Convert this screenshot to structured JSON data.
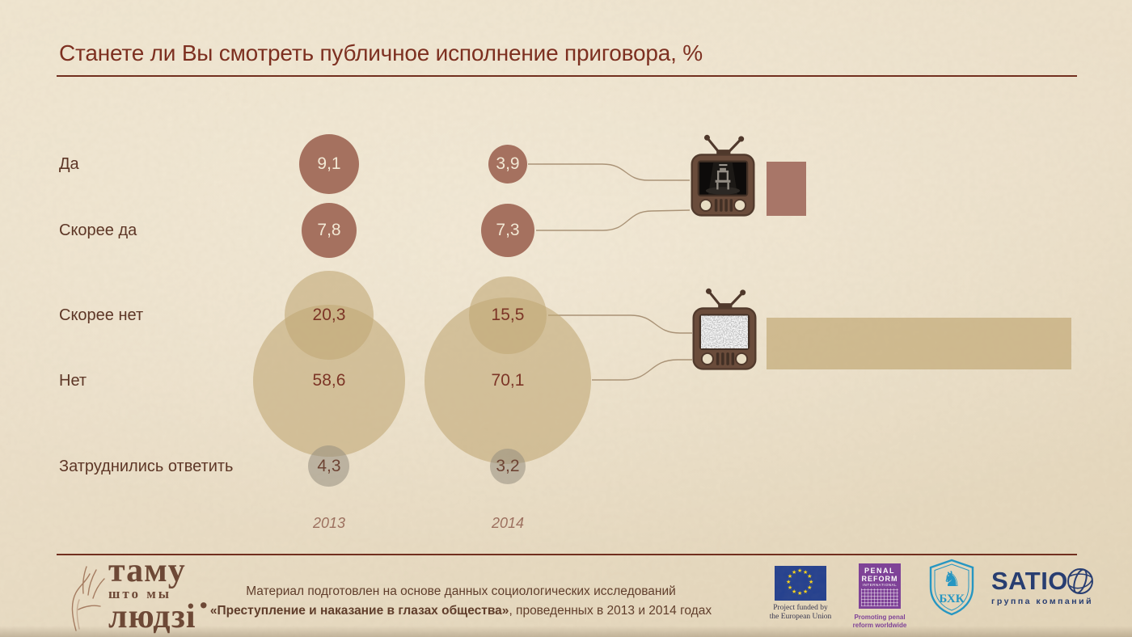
{
  "title": "Станете ли Вы смотреть публичное исполнение приговора, %",
  "chart_data": {
    "type": "bubble",
    "unit": "%",
    "categories": [
      "Да",
      "Скорее да",
      "Скорее нет",
      "Нет",
      "Затруднились ответить"
    ],
    "series": [
      {
        "name": "2013",
        "values": [
          9.1,
          7.8,
          20.3,
          58.6,
          4.3
        ]
      },
      {
        "name": "2014",
        "values": [
          3.9,
          7.3,
          15.5,
          70.1,
          3.2
        ]
      }
    ],
    "groups": [
      "yes",
      "yes",
      "no",
      "no",
      "undecided"
    ],
    "decimal_separator": ",",
    "bubble_area_scaled_by": "value",
    "grid": false,
    "legend_position": "none",
    "side_bars": {
      "description": "bars beside TV icons sized to 2014 group totals",
      "watch_total_2014": 11.2,
      "not_watch_total_2014": 85.6
    }
  },
  "icons": {
    "tv_watch": "retro-tv-showing-execution-scene",
    "tv_not_watch": "retro-tv-showing-static"
  },
  "palette": {
    "background": "#ece0ca",
    "title_text": "#7b2c1d",
    "label_text": "#5d3626",
    "bubble_yes": "#a5715f",
    "bubble_no": "#c4aa78",
    "bubble_undecided": "#968e80",
    "bubble_value_light": "#f2e8d4",
    "bubble_value_dark": "#7c3526",
    "connector": "#a28a6d",
    "bar_yes": "#a87668",
    "bar_no": "#d2bc94",
    "tv_body": "#6a4c3b",
    "eu_blue": "#24408e",
    "eu_star": "#ffd617",
    "pri_purple": "#7d3f98",
    "bhc_blue": "#2196c4",
    "satio_navy": "#233a70"
  },
  "footer": {
    "credit_line1": "Материал подготовлен на основе данных социологических исследований",
    "credit_line2_bold": "«Преступление и наказание в глазах общества»",
    "credit_line2_rest": ", проведенных в 2013 и 2014 годах",
    "brand": {
      "line1": "таму",
      "line2": "што мы",
      "line3": "людзі",
      "dot": "."
    },
    "logos": {
      "eu": {
        "caption_line1": "Project funded by",
        "caption_line2": "the European Union"
      },
      "pri": {
        "text_line1": "PENAL",
        "text_line2": "REFORM",
        "text_line3": "INTERNATIONAL",
        "caption_line1": "Promoting penal",
        "caption_line2": "reform worldwide"
      },
      "bhc": {
        "letters": "БХК"
      },
      "satio": {
        "name": "SATIO",
        "caption": "группа компаний"
      }
    }
  }
}
